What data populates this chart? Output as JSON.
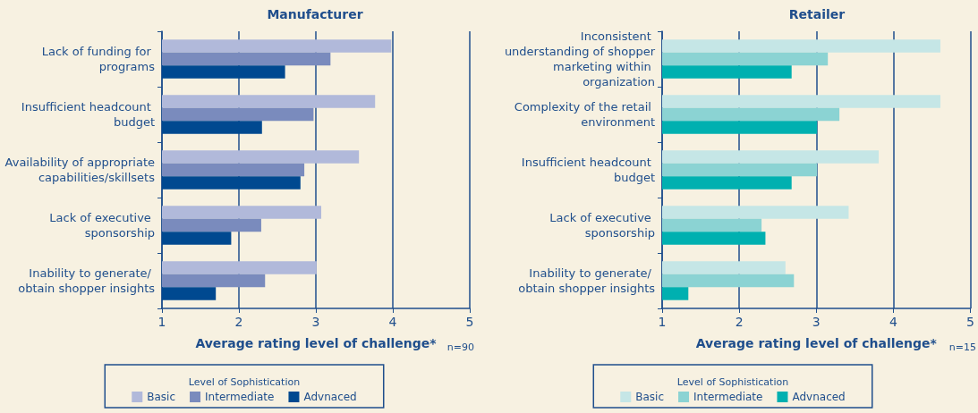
{
  "chart_data": [
    {
      "type": "bar",
      "orientation": "horizontal",
      "title": "Manufacturer",
      "xlabel": "Average rating level of challenge*",
      "legend_title": "Level of Sophistication",
      "legend": "bottom",
      "grid": "x",
      "annotations": [
        "n=90"
      ],
      "categories": [
        "Lack of funding for programs",
        "Insufficient headcount budget",
        "Availability of appropriate capabilities/skillsets",
        "Lack of executive sponsorship",
        "Inability to generate/ obtain shopper insights"
      ],
      "xlim": [
        1,
        5
      ],
      "xticks": [
        1,
        2,
        3,
        4,
        5
      ],
      "series": [
        {
          "name": "Basic",
          "color": "#b1b9da",
          "values": [
            3.98,
            3.77,
            3.56,
            3.07,
            3.01
          ]
        },
        {
          "name": "Intermediate",
          "color": "#7a8bbd",
          "values": [
            3.19,
            2.97,
            2.85,
            2.29,
            2.34
          ]
        },
        {
          "name": "Advnaced",
          "color": "#004990",
          "values": [
            2.6,
            2.3,
            2.8,
            1.9,
            1.7
          ]
        }
      ]
    },
    {
      "type": "bar",
      "orientation": "horizontal",
      "title": "Retailer",
      "xlabel": "Average rating level of challenge*",
      "legend_title": "Level of Sophistication",
      "legend": "bottom",
      "grid": "x",
      "annotations": [
        "n=15"
      ],
      "categories": [
        "Inconsistent understanding of shopper marketing within organization",
        "Complexity of the retail environment",
        "Insufficient headcount budget",
        "Lack of executive sponsorship",
        "Inability to generate/ obtain shopper insights"
      ],
      "xlim": [
        1,
        5
      ],
      "xticks": [
        1,
        2,
        3,
        4,
        5
      ],
      "series": [
        {
          "name": "Basic",
          "color": "#c5e6e6",
          "values": [
            4.61,
            4.61,
            3.81,
            3.42,
            2.6
          ]
        },
        {
          "name": "Intermediate",
          "color": "#8bd3d3",
          "values": [
            3.15,
            3.3,
            3.01,
            2.29,
            2.71
          ]
        },
        {
          "name": "Advnaced",
          "color": "#00b0b0",
          "values": [
            2.68,
            3.01,
            2.68,
            2.34,
            1.34
          ]
        }
      ]
    }
  ]
}
